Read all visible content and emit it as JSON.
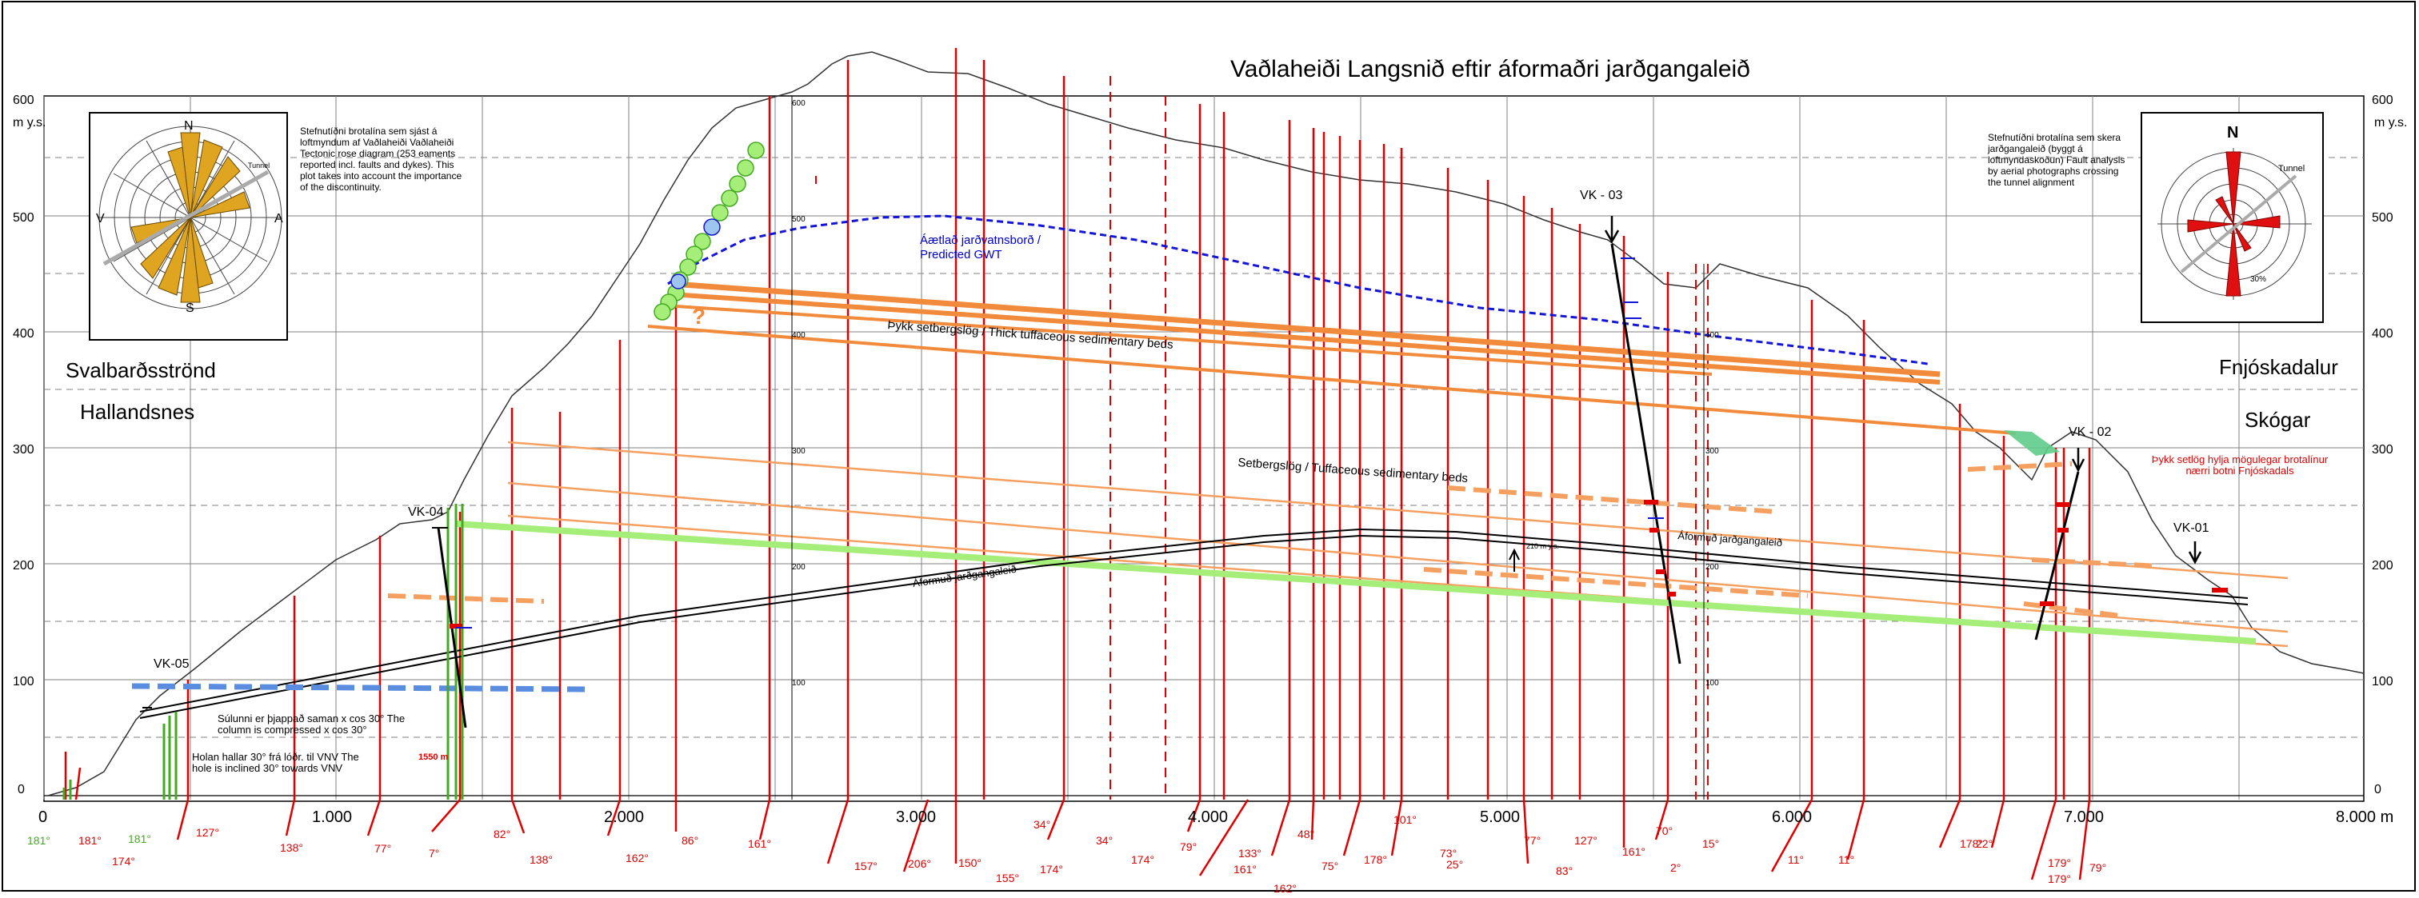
{
  "title": "Vaðlaheiði  Langsnið eftir áformaðri jarðgangaleið",
  "places": {
    "left_top": "Svalbarðsströnd",
    "left_bottom": "Hallandsnes",
    "right_top": "Fnjóskadalur",
    "right_bottom": "Skógar"
  },
  "notes": {
    "left_rose": "Stefnutíðni brotalína sem sjást á loftmyndum af Vaðlaheiði Vaðlaheiði Tectonic rose diagram (253 eaments reported incl. faults and dykes). This plot takes into account the importance of the discontinuity.",
    "right_rose": "Stefnutíðni brotalína sem skera jarðgangaleið (byggt á loftmyndaskoðun) Fault analysis by aerial photographs crossing the tunnel alignment",
    "compressed": "Súlunni er þjappað saman x cos 30° The column is compressed x cos 30°",
    "inclined": "Holan hallar 30° frá lóðr. til VNV The hole is inclined 30° towards VNV",
    "red_note": "Þykk setlög hylja mögulegar brotalínur nærri botni Fnjóskadals",
    "length_marker": "1550 m"
  },
  "layers": {
    "gwt": "Áætlað jarðvatnsborð / Predicted GWT",
    "thick_beds": "Þykk setbergslög / Thick tuffaceous sedimentary beds",
    "tuff_beds": "Setbergslög / Tuffaceous sedimentary beds",
    "tunnel_left": "Áformuð jarðgangaleið",
    "tunnel_right": "Áformuð jarðgangaleið",
    "question": "?"
  },
  "boreholes": [
    "VK-05",
    "VK-04",
    "VK - 03",
    "VK - 02",
    "VK-01"
  ],
  "rose_labels": {
    "left": {
      "n": "N",
      "s": "S",
      "v": "V",
      "a": "A",
      "tunnel": "Tunnel"
    },
    "right": {
      "n": "N",
      "tunnel": "Tunnel",
      "pct": "30%"
    }
  },
  "axes": {
    "y_unit": "m y.s.",
    "y_ticks": [
      "600",
      "500",
      "400",
      "300",
      "200",
      "100",
      "0"
    ],
    "x_ticks": [
      "0",
      "1.000",
      "2.000",
      "3.000",
      "4.000",
      "5.000",
      "6.000",
      "7.000",
      "8.000 m"
    ],
    "inner_ticks": [
      "600",
      "500",
      "400",
      "300",
      "200",
      "100"
    ],
    "tunnel_gap": "210 m y.s."
  },
  "fault_angles": [
    "181°",
    "181°",
    "174°",
    "181°",
    "127°",
    "138°",
    "77°",
    "7°",
    "82°",
    "138°",
    "162°",
    "86°",
    "161°",
    "157°",
    "206°",
    "150°",
    "155°",
    "34°",
    "174°",
    "34°",
    "174°",
    "79°",
    "133°",
    "48°",
    "161°",
    "162°",
    "75°",
    "178°",
    "101°",
    "73°",
    "25°",
    "77°",
    "83°",
    "127°",
    "161°",
    "70°",
    "15°",
    "2°",
    "11°",
    "11°",
    "178°",
    "22°",
    "179°",
    "179°",
    "79°"
  ],
  "colors": {
    "fault": "#e00000",
    "thick_bed": "#f28a3c",
    "tuff_bed": "#f5a060",
    "tuff_green": "#a6ee7a",
    "gwt": "#1515d8",
    "vk05_blue": "#5a8de0"
  }
}
